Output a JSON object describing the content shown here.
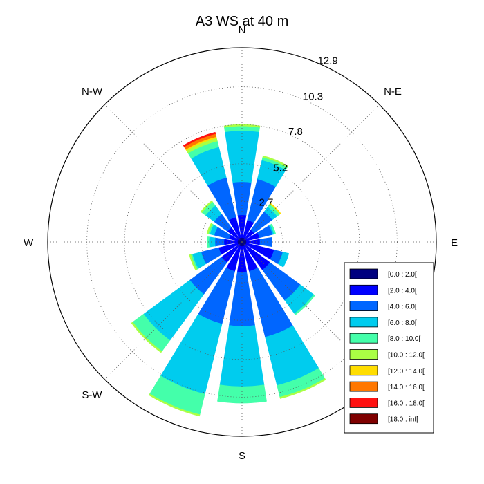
{
  "chart_data": {
    "type": "windrose",
    "title": "A3 WS at 40 m",
    "directions": [
      "N",
      "NNE",
      "NE",
      "ENE",
      "E",
      "ESE",
      "SE",
      "SSE",
      "S",
      "SSW",
      "SW",
      "WSW",
      "W",
      "WNW",
      "NW",
      "NNW"
    ],
    "direction_labels": [
      "N",
      "N-E",
      "E",
      "",
      "S",
      "S-W",
      "W",
      "N-W"
    ],
    "ring_labels": [
      "2.7",
      "5.2",
      "7.8",
      "10.3",
      "12.9"
    ],
    "ring_values": [
      2.7,
      5.2,
      7.8,
      10.3,
      12.9
    ],
    "rmax": 12.9,
    "grid": true,
    "legend_position": "bottom-right",
    "bins": [
      "[0.0 : 2.0[",
      "[2.0 : 4.0[",
      "[4.0 : 6.0[",
      "[6.0 : 8.0[",
      "[8.0 : 10.0[",
      "[10.0 : 12.0[",
      "[12.0 : 14.0[",
      "[14.0 : 16.0[",
      "[16.0 : 18.0[",
      "[18.0 : inf["
    ],
    "colors": [
      "#00007f",
      "#0000ff",
      "#0066ff",
      "#00ccee",
      "#44ffaa",
      "#aaff44",
      "#ffdd00",
      "#ff7700",
      "#ff1111",
      "#7f0000"
    ],
    "cumulative": [
      [
        0.3,
        1.8,
        4.0,
        7.4,
        7.7,
        7.8,
        7.8,
        7.8,
        7.8,
        7.8
      ],
      [
        0.3,
        1.5,
        4.3,
        5.6,
        5.8,
        5.9,
        5.9,
        5.9,
        5.9,
        5.9
      ],
      [
        0.3,
        1.0,
        2.5,
        2.9,
        3.1,
        3.15,
        3.2,
        3.2,
        3.2,
        3.2
      ],
      [
        0.3,
        1.2,
        2.1,
        2.2,
        2.3,
        2.3,
        2.3,
        2.3,
        2.3,
        2.3
      ],
      [
        0.3,
        1.2,
        2.0,
        2.0,
        2.0,
        2.0,
        2.0,
        2.0,
        2.0,
        2.0
      ],
      [
        0.3,
        2.2,
        2.8,
        3.2,
        3.2,
        3.2,
        3.2,
        3.2,
        3.2,
        3.2
      ],
      [
        0.3,
        2.3,
        4.8,
        5.9,
        6.0,
        6.0,
        6.0,
        6.0,
        6.0,
        6.0
      ],
      [
        0.3,
        2.0,
        6.5,
        9.8,
        10.6,
        10.7,
        10.7,
        10.7,
        10.7,
        10.7
      ],
      [
        0.3,
        2.0,
        5.6,
        9.6,
        10.7,
        10.7,
        10.7,
        10.7,
        10.7,
        10.7
      ],
      [
        0.3,
        2.0,
        5.6,
        10.4,
        11.8,
        11.9,
        11.9,
        11.9,
        11.9,
        11.9
      ],
      [
        0.3,
        1.7,
        4.3,
        8.1,
        9.0,
        9.1,
        9.1,
        9.1,
        9.1,
        9.1
      ],
      [
        0.3,
        1.6,
        2.8,
        3.4,
        3.5,
        3.6,
        3.6,
        3.6,
        3.6,
        3.6
      ],
      [
        0.3,
        1.2,
        1.8,
        2.2,
        2.3,
        2.3,
        2.3,
        2.3,
        2.3,
        2.3
      ],
      [
        0.3,
        0.9,
        1.9,
        2.2,
        2.3,
        2.4,
        2.4,
        2.4,
        2.4,
        2.4
      ],
      [
        0.3,
        1.2,
        2.3,
        3.0,
        3.3,
        3.4,
        3.4,
        3.4,
        3.4,
        3.4
      ],
      [
        0.3,
        1.7,
        4.4,
        6.5,
        6.9,
        7.1,
        7.2,
        7.4,
        7.5,
        7.5
      ]
    ]
  }
}
